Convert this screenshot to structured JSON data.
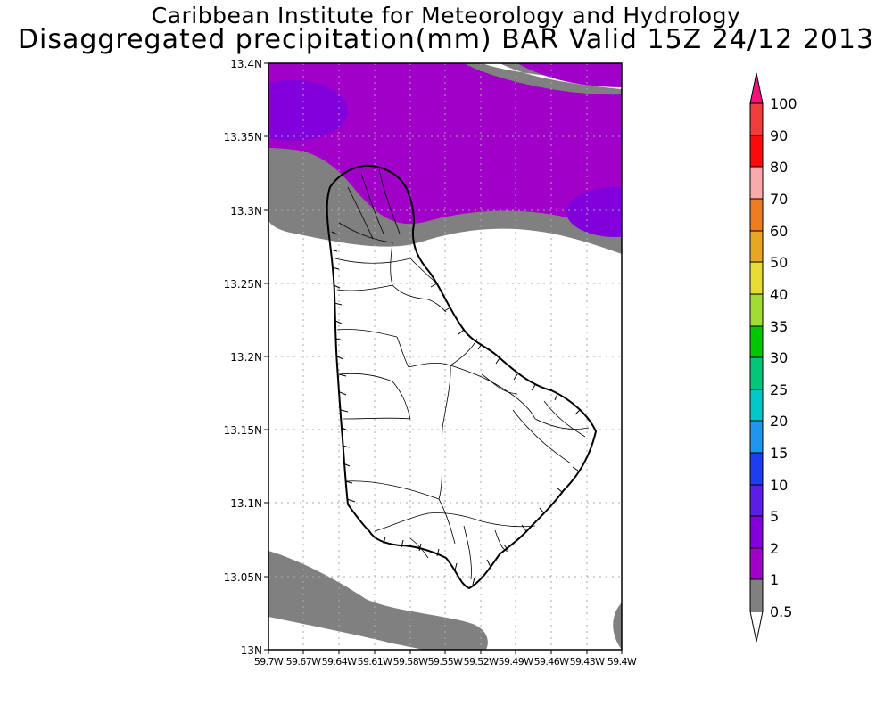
{
  "header": {
    "title": "Caribbean Institute for Meteorology and Hydrology",
    "subtitle": "Disaggregated precipitation(mm) BAR Valid 15Z 24/12 2013"
  },
  "map": {
    "lat_labels": [
      "13.4N",
      "13.35N",
      "13.3N",
      "13.25N",
      "13.2N",
      "13.15N",
      "13.1N",
      "13.05N",
      "13N"
    ],
    "lon_labels": [
      "59.7W",
      "59.67W",
      "59.64W",
      "59.61W",
      "59.58W",
      "59.55W",
      "59.52W",
      "59.49W",
      "59.46W",
      "59.43W",
      "59.4W"
    ],
    "lat_range": [
      13.0,
      13.4
    ],
    "lon_range": [
      -59.7,
      -59.4
    ],
    "grid": "dotted",
    "region": "Barbados"
  },
  "colorbar": {
    "labels": [
      "100",
      "90",
      "80",
      "70",
      "60",
      "50",
      "40",
      "35",
      "30",
      "25",
      "20",
      "15",
      "10",
      "5",
      "2",
      "1",
      "0.5"
    ],
    "colors": [
      "#f0147a",
      "#f03c3c",
      "#fa0a0a",
      "#faaaaa",
      "#f07c22",
      "#e6a823",
      "#e6dc32",
      "#a0dc32",
      "#00c800",
      "#00c878",
      "#00c8c8",
      "#1e96f0",
      "#1e3cf0",
      "#5a1ee6",
      "#8200dc",
      "#a000c8",
      "#808080"
    ]
  },
  "precip_colors": {
    "grey": "#808080",
    "purple": "#a000c8",
    "violet": "#8200dc"
  }
}
